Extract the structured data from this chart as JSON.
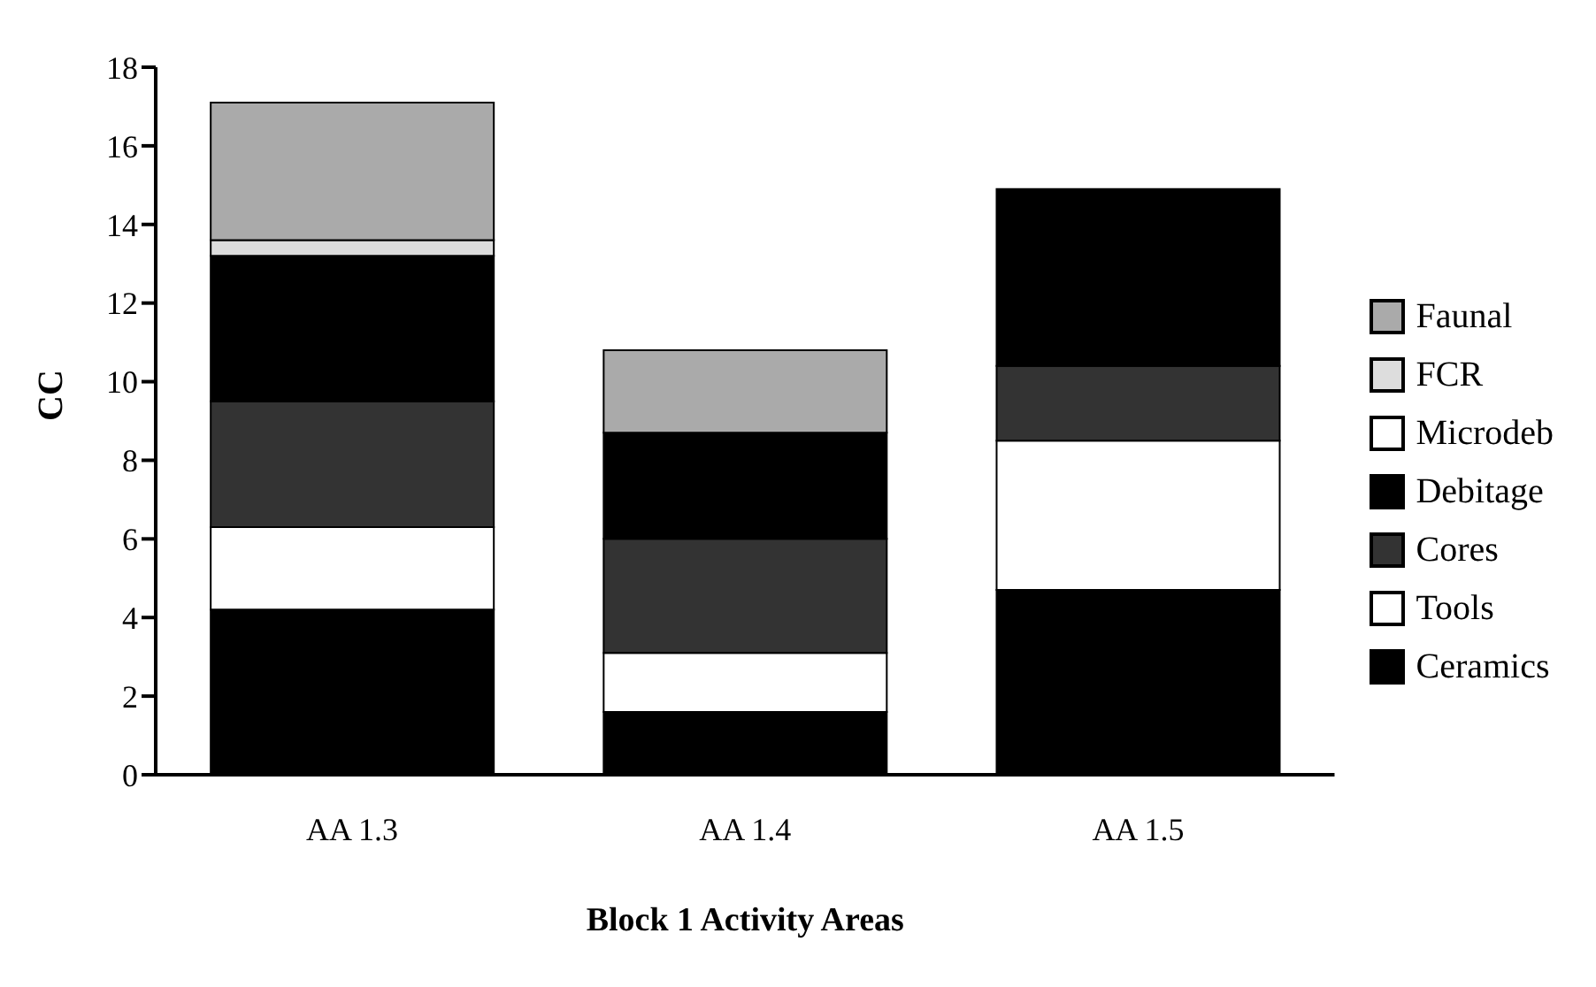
{
  "chart_data": {
    "type": "bar",
    "stacked": true,
    "xlabel": "Block 1 Activity Areas",
    "ylabel": "CC",
    "categories": [
      "AA 1.3",
      "AA 1.4",
      "AA 1.5"
    ],
    "series": [
      {
        "name": "Ceramics",
        "color": "#000000",
        "values": [
          4.2,
          1.6,
          4.7
        ]
      },
      {
        "name": "Tools",
        "color": "#ffffff",
        "values": [
          2.1,
          1.5,
          3.8
        ]
      },
      {
        "name": "Cores",
        "color": "#333333",
        "values": [
          3.2,
          2.9,
          1.9
        ]
      },
      {
        "name": "Debitage",
        "color": "#000000",
        "values": [
          3.7,
          2.7,
          4.5
        ]
      },
      {
        "name": "Microdeb",
        "color": "#ffffff",
        "values": [
          0,
          0,
          0
        ]
      },
      {
        "name": "FCR",
        "color": "#dddddd",
        "values": [
          0.4,
          0,
          0
        ]
      },
      {
        "name": "Faunal",
        "color": "#aaaaaa",
        "values": [
          3.5,
          2.1,
          0
        ]
      }
    ],
    "ylim": [
      0,
      18
    ],
    "yticks": [
      0,
      2,
      4,
      6,
      8,
      10,
      12,
      14,
      16,
      18
    ],
    "grid": false,
    "legend": "right"
  }
}
